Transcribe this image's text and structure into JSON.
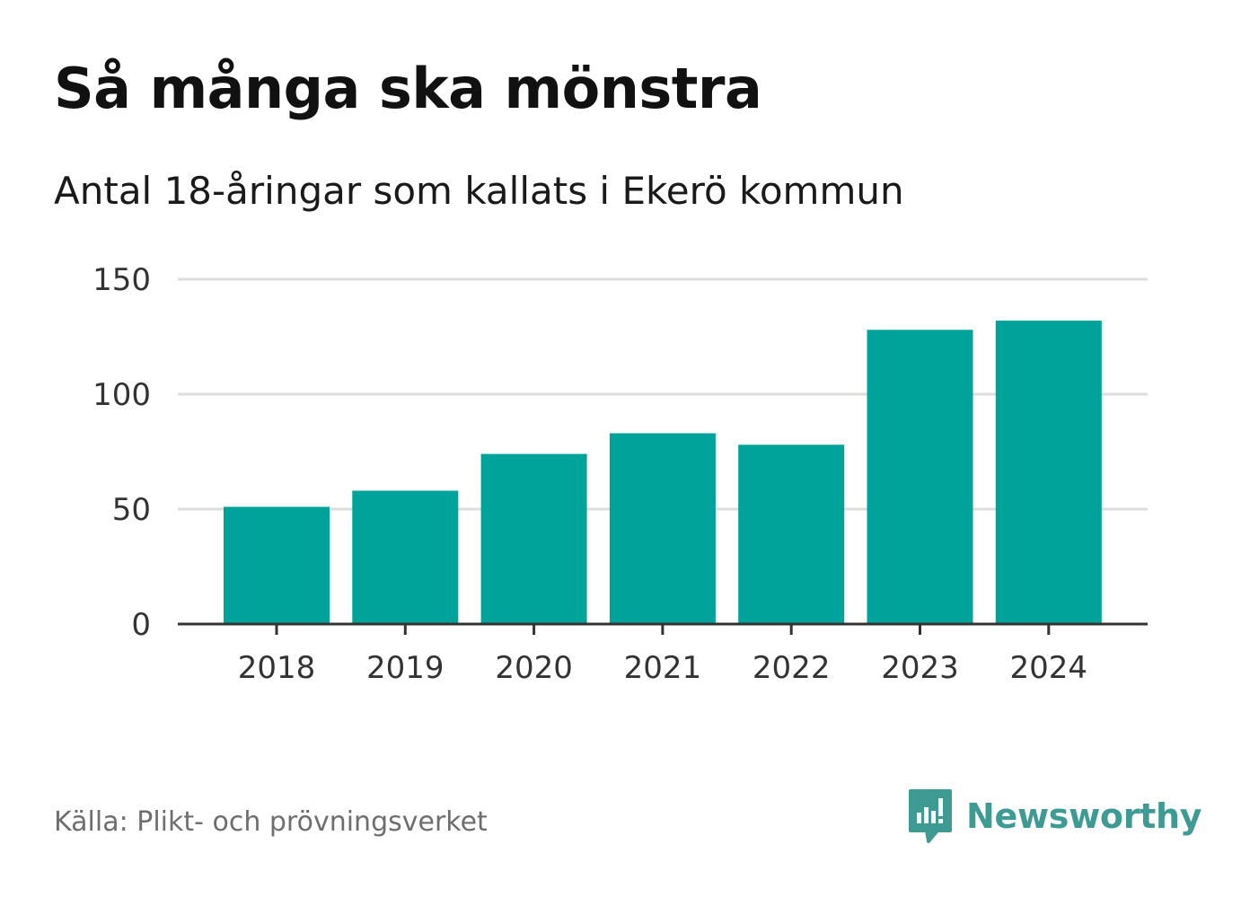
{
  "header": {
    "title": "Så många ska mönstra",
    "subtitle": "Antal 18-åringar som kallats i Ekerö kommun"
  },
  "footer": {
    "source": "Källa: Plikt- och prövningsverket",
    "brand": "Newsworthy",
    "brand_icon": "newsworthy-logo-icon"
  },
  "colors": {
    "bar": "#00a39a",
    "gridline": "#dddddd",
    "axis": "#333333",
    "tick_text": "#333333",
    "brand": "#3d9b94"
  },
  "chart_data": {
    "type": "bar",
    "title": "Så många ska mönstra",
    "subtitle": "Antal 18-åringar som kallats i Ekerö kommun",
    "xlabel": "",
    "ylabel": "",
    "categories": [
      "2018",
      "2019",
      "2020",
      "2021",
      "2022",
      "2023",
      "2024"
    ],
    "values": [
      51,
      58,
      74,
      83,
      78,
      128,
      132
    ],
    "ylim": [
      0,
      150
    ],
    "yticks": [
      0,
      50,
      100,
      150
    ],
    "grid": true,
    "legend": "none"
  }
}
